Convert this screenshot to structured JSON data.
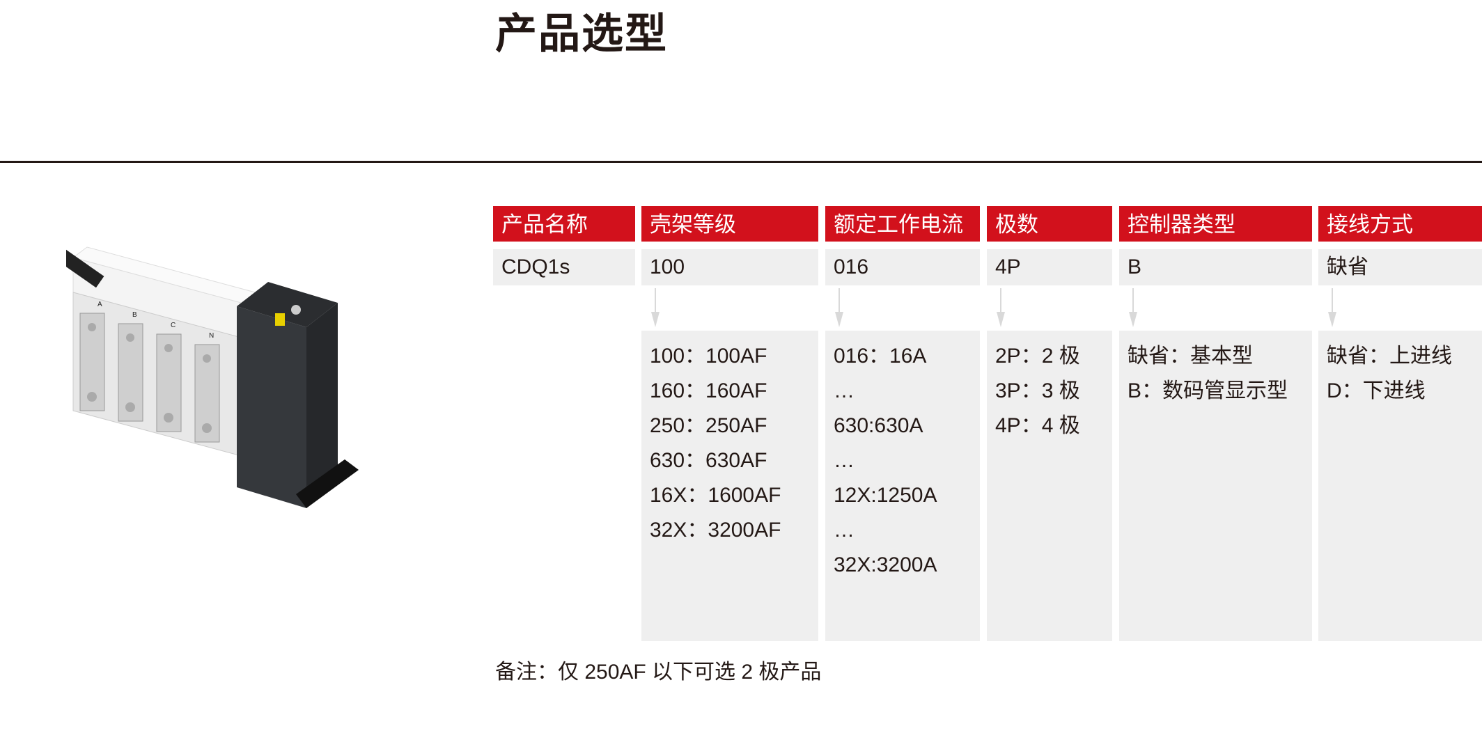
{
  "title": "产品选型",
  "columns": [
    {
      "header": "产品名称",
      "value": "CDQ1s",
      "options": []
    },
    {
      "header": "壳架等级",
      "value": "100",
      "options": [
        "100：100AF",
        "160：160AF",
        "250：250AF",
        "630：630AF",
        "16X：1600AF",
        "32X：3200AF"
      ]
    },
    {
      "header": "额定工作电流",
      "value": "016",
      "options": [
        "016：16A",
        "…",
        "630:630A",
        "…",
        "12X:1250A",
        "…",
        "32X:3200A"
      ]
    },
    {
      "header": "极数",
      "value": "4P",
      "options": [
        "2P：2 极",
        "3P：3 极",
        "4P：4 极"
      ]
    },
    {
      "header": "控制器类型",
      "value": "B",
      "options": [
        "缺省：基本型",
        "B：数码管显示型"
      ]
    },
    {
      "header": "接线方式",
      "value": "缺省",
      "options": [
        "缺省：上进线",
        "D：下进线"
      ]
    }
  ],
  "note": "备注：仅 250AF 以下可选 2 极产品",
  "product_image": {
    "pole_labels": [
      "A",
      "B",
      "C",
      "N"
    ]
  },
  "colors": {
    "header_bg": "#d2111c",
    "cell_bg": "#efefef",
    "arrow": "#d9d9d9",
    "text": "#231815"
  }
}
